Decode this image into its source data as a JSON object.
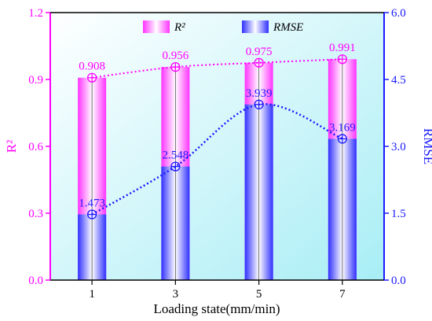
{
  "chart_data": {
    "type": "bar",
    "categories": [
      "1",
      "3",
      "5",
      "7"
    ],
    "xlabel": "Loading state(mm/min)",
    "ylabel_left": "R²",
    "ylabel_right": "RMSE",
    "ylim_left": [
      0,
      1.2
    ],
    "ylim_right": [
      0,
      6.0
    ],
    "yticks_left": [
      "0.0",
      "0.3",
      "0.6",
      "0.9",
      "1.2"
    ],
    "yticks_right": [
      "0.0",
      "1.5",
      "3.0",
      "4.5",
      "6.0"
    ],
    "series": [
      {
        "name": "R²",
        "axis": "left",
        "values": [
          0.908,
          0.956,
          0.975,
          0.991
        ],
        "labels": [
          "0.908",
          "0.956",
          "0.975",
          "0.991"
        ],
        "color": "#ff00ff"
      },
      {
        "name": "RMSE",
        "axis": "right",
        "values": [
          1.473,
          2.548,
          3.939,
          3.169
        ],
        "labels": [
          "1.473",
          "2.548",
          "3.939",
          "3.169"
        ],
        "color": "#1a1aff"
      }
    ],
    "legend": "top",
    "grid": false,
    "colors": {
      "left_axis": "#ff00ff",
      "right_axis": "#1a1aff",
      "background_top": "#ffffff",
      "background_bottom": "#a8eef5"
    }
  }
}
